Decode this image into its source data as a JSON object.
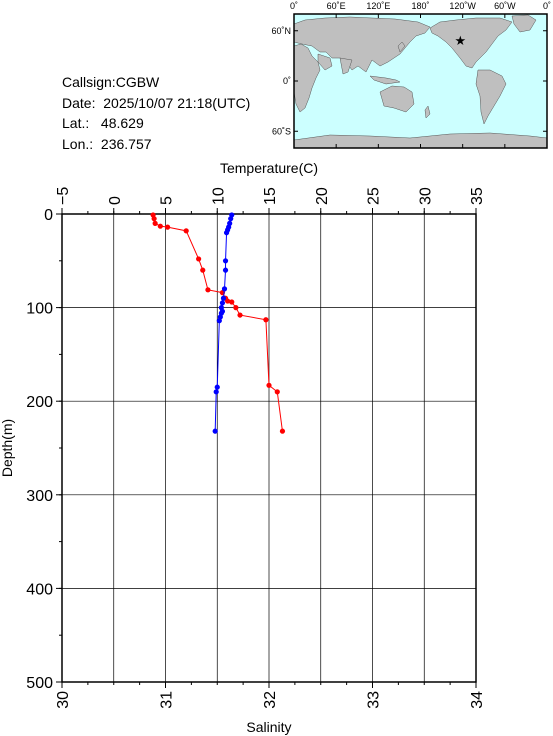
{
  "station": {
    "callsign_label": "Callsign:",
    "callsign": "CGBW",
    "date_label": "Date:",
    "date": "2025/10/07 21:18(UTC)",
    "lat_label": "Lat.:",
    "lat": "48.629",
    "lon_label": "Lon.:",
    "lon": "236.757"
  },
  "map": {
    "top_ticks": [
      "0˚",
      "60˚E",
      "120˚E",
      "180˚",
      "120˚W",
      "60˚W",
      "0˚"
    ],
    "left_ticks": [
      "60˚N",
      "0˚",
      "60˚S"
    ],
    "ocean_color": "#ccffff",
    "land_color": "#bfbfbf",
    "station_marker_color": "#ff0000",
    "station_lon": 236.757,
    "station_lat": 48.629
  },
  "chart_data": {
    "type": "line",
    "top_axis": {
      "label": "Temperature(C)",
      "range": [
        -5,
        35
      ],
      "ticks": [
        -5,
        0,
        5,
        10,
        15,
        20,
        25,
        30,
        35
      ]
    },
    "bottom_axis": {
      "label": "Salinity",
      "range": [
        30,
        34
      ],
      "ticks": [
        30,
        31,
        32,
        33,
        34
      ]
    },
    "y_axis": {
      "label": "Depth(m)",
      "range": [
        0,
        500
      ],
      "inverted": true,
      "ticks": [
        0,
        100,
        200,
        300,
        400,
        500
      ]
    },
    "grid": true,
    "series": [
      {
        "quantity": "temperature",
        "axis": "top",
        "color": "#ff0000",
        "points": [
          [
            3.8,
            1
          ],
          [
            3.9,
            5
          ],
          [
            4.0,
            10
          ],
          [
            4.5,
            13
          ],
          [
            5.2,
            14
          ],
          [
            7.0,
            18
          ],
          [
            8.2,
            48
          ],
          [
            8.6,
            60
          ],
          [
            9.1,
            81
          ],
          [
            10.5,
            84
          ],
          [
            10.8,
            90
          ],
          [
            11.0,
            93
          ],
          [
            11.4,
            94
          ],
          [
            11.8,
            100
          ],
          [
            12.2,
            108
          ],
          [
            14.7,
            113
          ],
          [
            15.0,
            183
          ],
          [
            15.8,
            190
          ],
          [
            16.3,
            232
          ]
        ]
      },
      {
        "quantity": "salinity",
        "axis": "bottom",
        "color": "#0000ff",
        "points": [
          [
            31.64,
            1
          ],
          [
            31.63,
            5
          ],
          [
            31.62,
            10
          ],
          [
            31.61,
            14
          ],
          [
            31.6,
            17
          ],
          [
            31.59,
            20
          ],
          [
            31.58,
            50
          ],
          [
            31.58,
            60
          ],
          [
            31.57,
            80
          ],
          [
            31.56,
            90
          ],
          [
            31.55,
            95
          ],
          [
            31.54,
            100
          ],
          [
            31.55,
            104
          ],
          [
            31.54,
            106
          ],
          [
            31.53,
            110
          ],
          [
            31.52,
            114
          ],
          [
            31.5,
            185
          ],
          [
            31.49,
            190
          ],
          [
            31.48,
            232
          ]
        ]
      }
    ]
  }
}
